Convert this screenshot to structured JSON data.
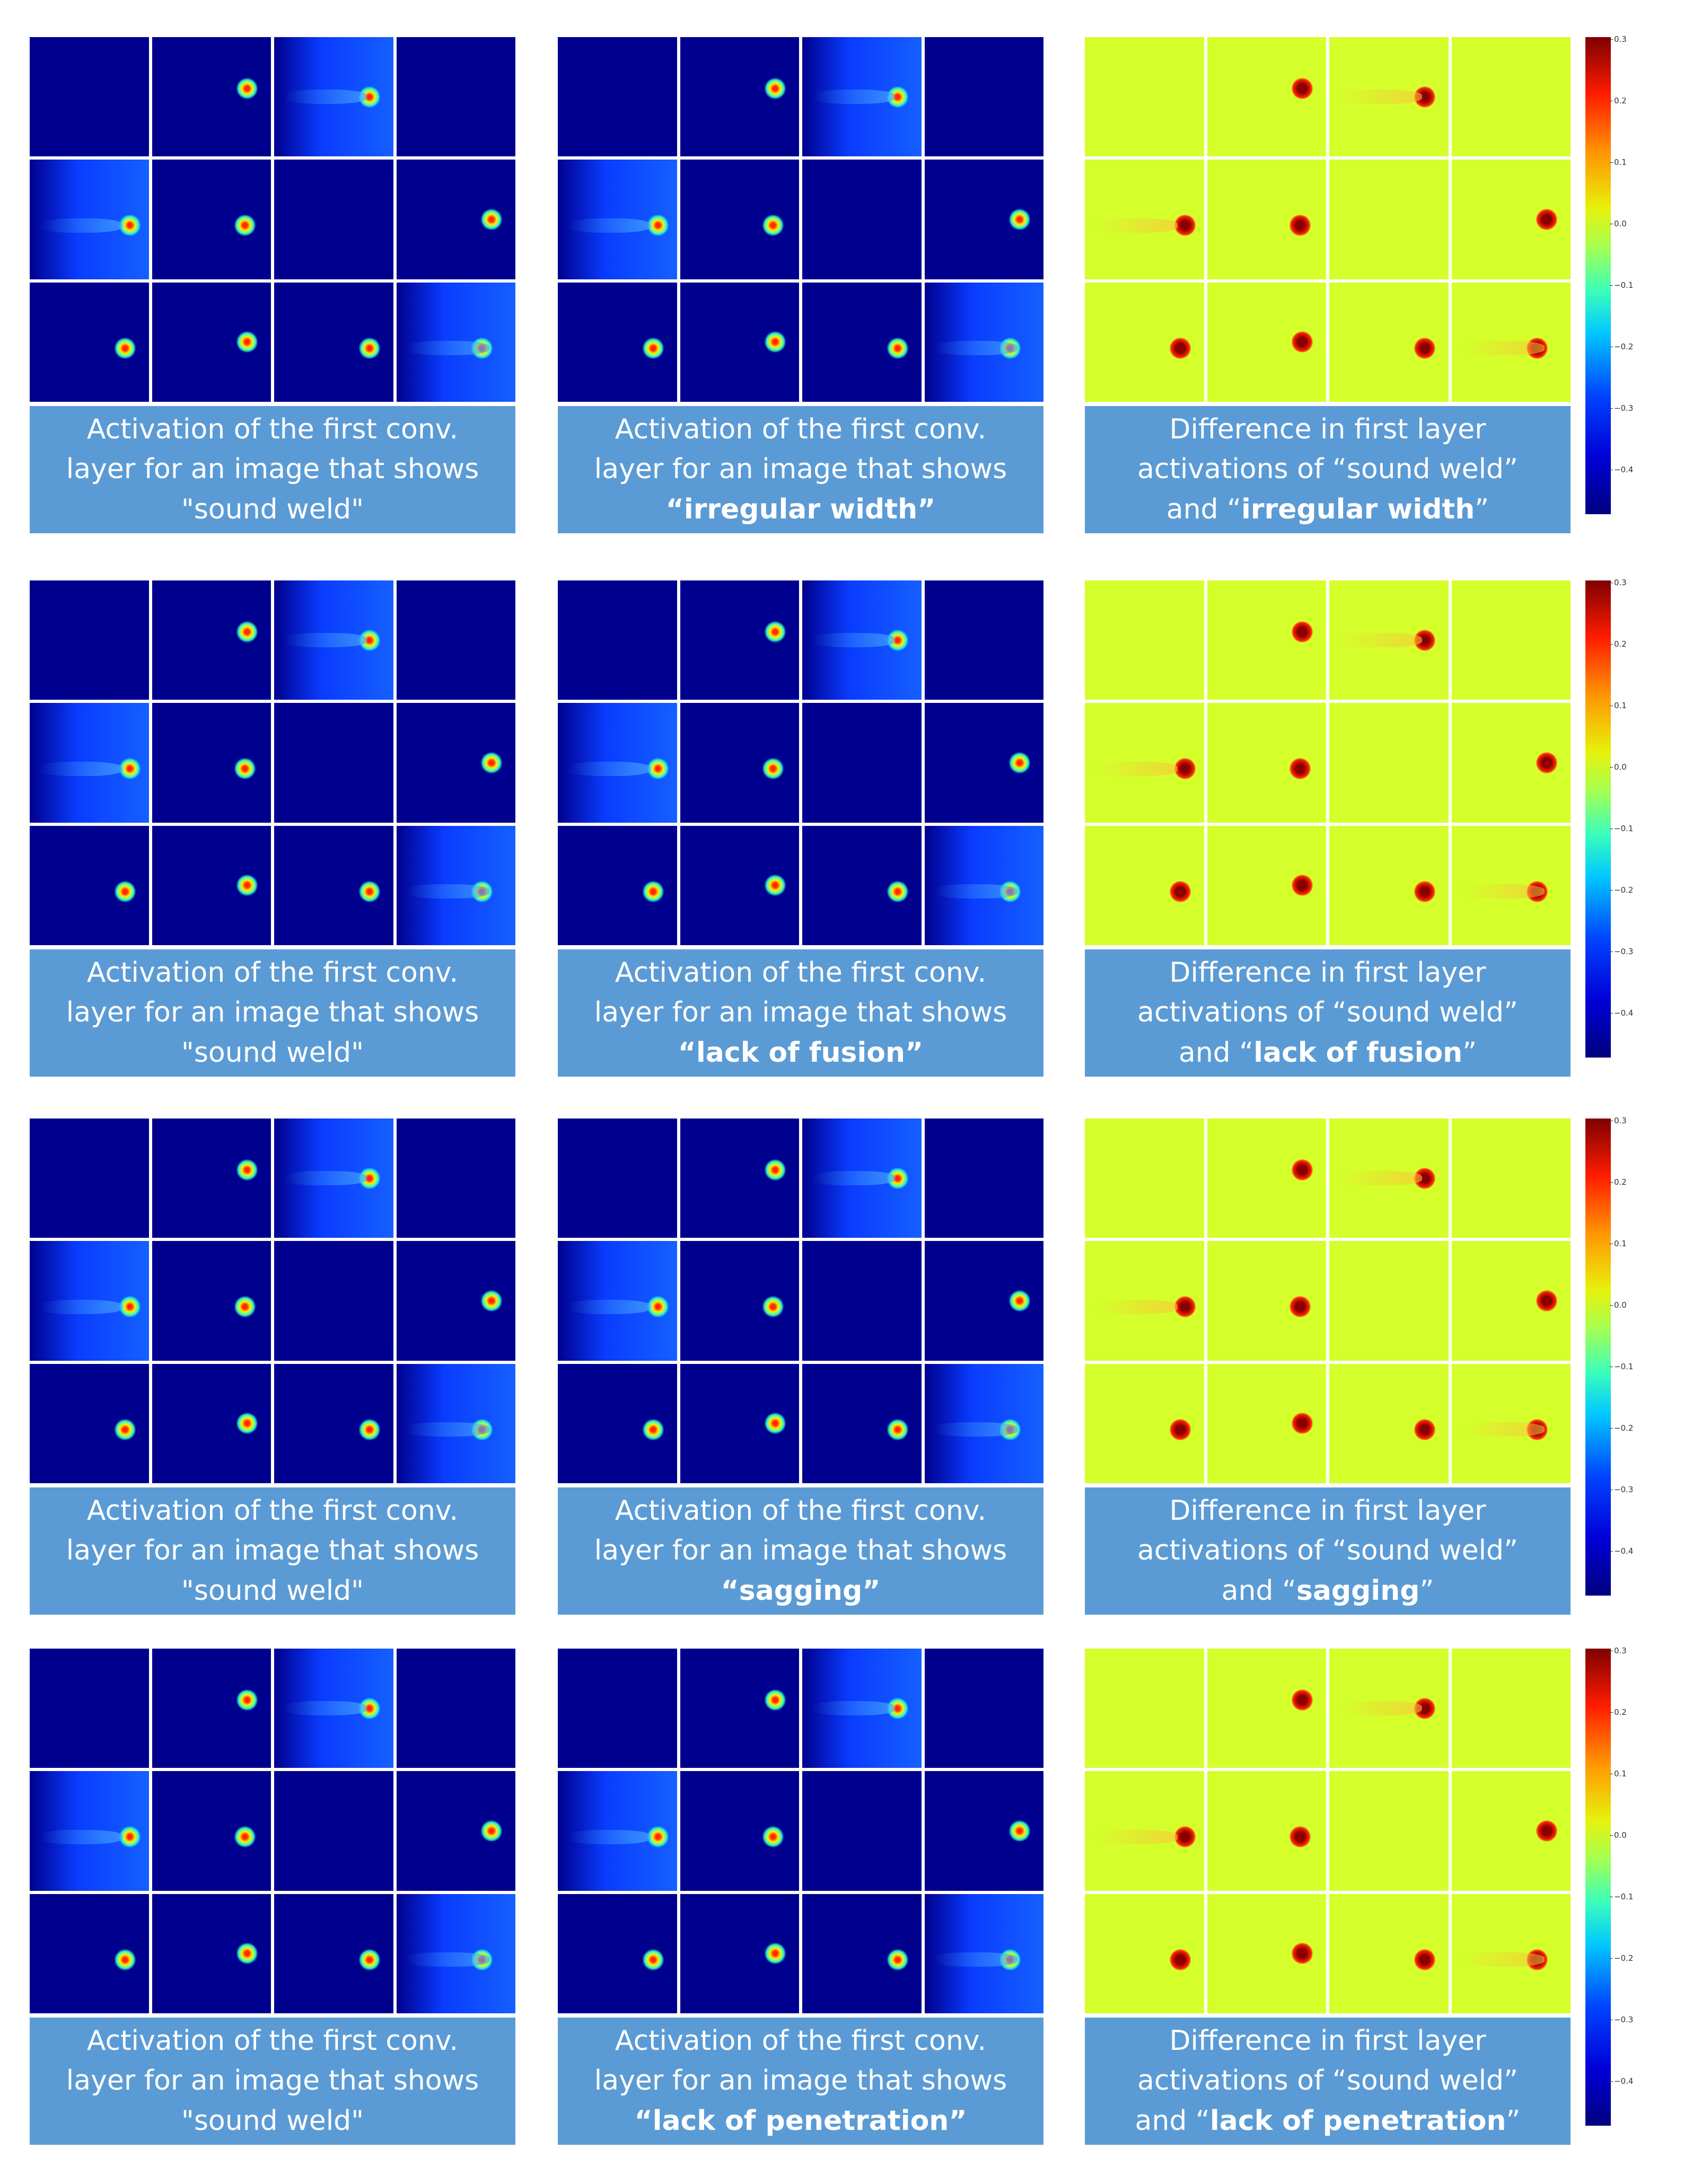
{
  "rows": [
    {
      "captions": [
        {
          "line1": "Activation of the first conv.",
          "line2": "layer for an image that shows",
          "line3": "\"sound weld\"",
          "bold": ""
        },
        {
          "line1": "Activation of the first conv.",
          "line2": "layer for an image that shows",
          "line3": "",
          "bold": "“irregular width”"
        },
        {
          "line1": "Difference in first layer",
          "line2": "activations of “sound weld”",
          "line3": "and “",
          "bold": "irregular width",
          "tail": "”"
        }
      ]
    },
    {
      "captions": [
        {
          "line1": "Activation of the first conv.",
          "line2": "layer for an image that shows",
          "line3": "\"sound weld\"",
          "bold": ""
        },
        {
          "line1": "Activation of the first conv.",
          "line2": "layer for an image that shows",
          "line3": "",
          "bold": "“lack of fusion”"
        },
        {
          "line1": "Difference in first layer",
          "line2": "activations of “sound weld”",
          "line3": "and “",
          "bold": "lack of fusion",
          "tail": "”"
        }
      ]
    },
    {
      "captions": [
        {
          "line1": "Activation of the first conv.",
          "line2": "layer for an image that shows",
          "line3": "\"sound weld\"",
          "bold": ""
        },
        {
          "line1": "Activation of the first conv.",
          "line2": "layer for an image that shows",
          "line3": "",
          "bold": "“sagging”"
        },
        {
          "line1": "Difference in first layer",
          "line2": "activations of “sound weld”",
          "line3": "and “",
          "bold": "sagging",
          "tail": "”"
        }
      ]
    },
    {
      "captions": [
        {
          "line1": "Activation of the first conv.",
          "line2": "layer for an image that shows",
          "line3": "\"sound weld\"",
          "bold": ""
        },
        {
          "line1": "Activation of the first conv.",
          "line2": "layer for an image that shows",
          "line3": "",
          "bold": "“lack of penetration”"
        },
        {
          "line1": "Difference in first layer",
          "line2": "activations of “sound weld”",
          "line3": "and “",
          "bold": "lack of penetration",
          "tail": "”"
        }
      ]
    }
  ],
  "colorbar_ticks": [
    "0.3",
    "0.2",
    "0.1",
    "0.0",
    "−0.1",
    "−0.2",
    "−0.3",
    "−0.4"
  ],
  "colors": {
    "activation_bg": "#00008f",
    "activation_bright_bg": "#0a3cff",
    "difference_bg": "#d4ff2a",
    "caption_bg": "#5b9bd5"
  }
}
